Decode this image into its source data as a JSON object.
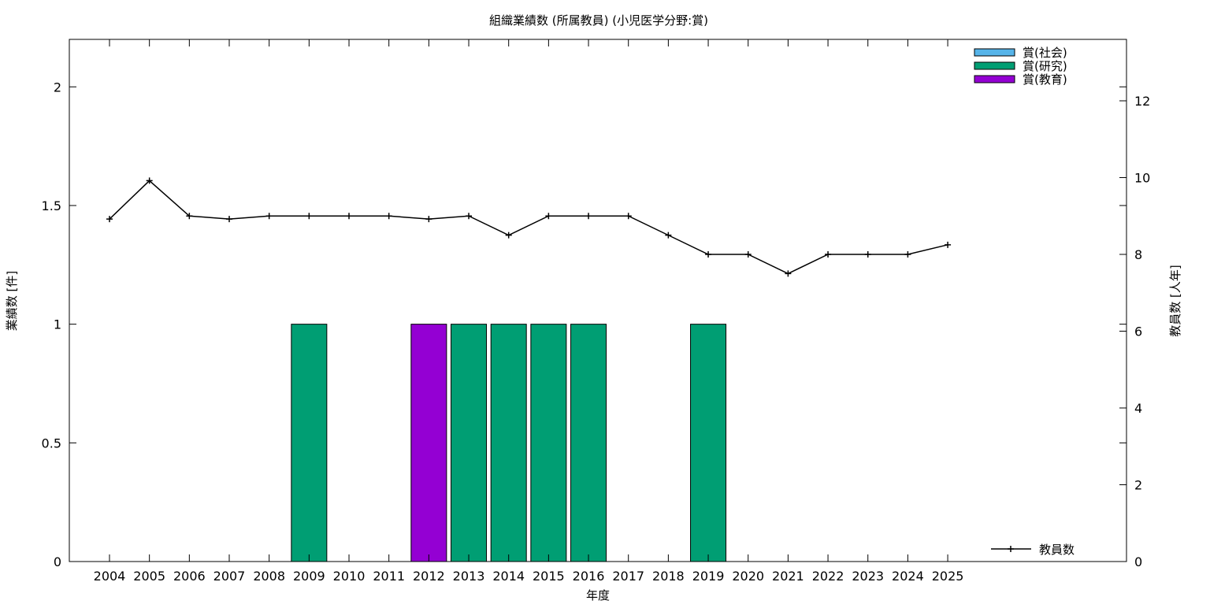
{
  "chart_data": {
    "type": "bar",
    "title": "組織業績数 (所属教員) (小児医学分野:賞)",
    "xlabel": "年度",
    "ylabel": "業績数 [件]",
    "y2label": "教員数 [人年]",
    "categories": [
      "2004",
      "2005",
      "2006",
      "2007",
      "2008",
      "2009",
      "2010",
      "2011",
      "2012",
      "2013",
      "2014",
      "2015",
      "2016",
      "2017",
      "2018",
      "2019",
      "2020",
      "2021",
      "2022",
      "2023",
      "2024",
      "2025"
    ],
    "ylim": [
      0,
      2.2
    ],
    "y_ticks": [
      "0",
      "0.5",
      "1",
      "1.5",
      "2"
    ],
    "y2lim": [
      0,
      13.6
    ],
    "y2_ticks": [
      "0",
      "2",
      "4",
      "6",
      "8",
      "10",
      "12"
    ],
    "grid": false,
    "series": [
      {
        "name": "賞(社会)",
        "color": "#56b4e9",
        "values": [
          0,
          0,
          0,
          0,
          0,
          0,
          0,
          0,
          0,
          0,
          0,
          0,
          0,
          0,
          0,
          0,
          0,
          0,
          0,
          0,
          0,
          0
        ]
      },
      {
        "name": "賞(研究)",
        "color": "#009e73",
        "values": [
          0,
          0,
          0,
          0,
          0,
          1,
          0,
          0,
          0,
          1,
          1,
          1,
          1,
          0,
          0,
          1,
          0,
          0,
          0,
          0,
          0,
          0
        ]
      },
      {
        "name": "賞(教育)",
        "color": "#9400d3",
        "values": [
          0,
          0,
          0,
          0,
          0,
          0,
          0,
          0,
          1,
          0,
          0,
          0,
          0,
          0,
          0,
          0,
          0,
          0,
          0,
          0,
          0,
          0
        ]
      }
    ],
    "line_series": {
      "name": "教員数",
      "color": "#000000",
      "axis": "y2",
      "values": [
        8.92,
        9.92,
        9.0,
        8.92,
        9.0,
        9.0,
        9.0,
        9.0,
        8.92,
        9.0,
        8.5,
        9.0,
        9.0,
        9.0,
        8.5,
        8.0,
        8.0,
        7.5,
        8.0,
        8.0,
        8.0,
        8.25
      ]
    },
    "legend_bars_position": "top-right",
    "legend_line_position": "bottom-right"
  }
}
